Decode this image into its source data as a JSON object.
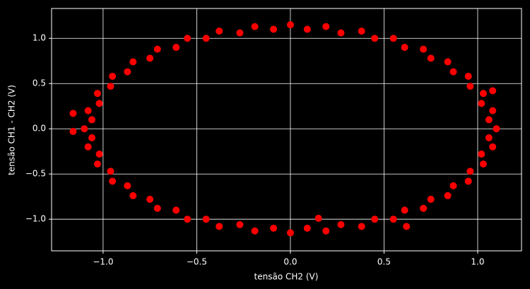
{
  "chart_data": {
    "type": "scatter",
    "xlabel": "tensão CH2 (V)",
    "ylabel": "tensão CH1 - CH2 (V)",
    "x": [
      1.1,
      1.08,
      1.03,
      0.95,
      0.84,
      0.71,
      0.55,
      0.38,
      0.19,
      0,
      -0.19,
      -0.38,
      -0.55,
      -0.71,
      -0.84,
      -0.95,
      -1.03,
      -1.08,
      -1.1,
      -1.08,
      -1.03,
      -0.95,
      -0.84,
      -0.71,
      -0.55,
      -0.38,
      -0.19,
      0,
      0.19,
      0.38,
      0.55,
      0.71,
      0.84,
      0.95,
      1.03,
      1.08,
      1.06,
      1.02,
      0.96,
      0.87,
      0.75,
      0.61,
      0.45,
      0.27,
      0.09,
      -0.09,
      -0.27,
      -0.45,
      -0.61,
      -0.75,
      -0.87,
      -0.96,
      -1.02,
      -1.06,
      -1.06,
      -1.02,
      -0.96,
      -0.87,
      -0.75,
      -0.61,
      -0.45,
      -0.27,
      -0.09,
      0.09,
      0.27,
      0.45,
      0.61,
      0.75,
      0.87,
      0.96,
      1.02,
      1.06,
      -1.16,
      -1.16,
      0.15,
      0.62,
      1.08
    ],
    "values": [
      0,
      0.2,
      0.39,
      0.58,
      0.74,
      0.88,
      1.0,
      1.08,
      1.13,
      1.15,
      1.13,
      1.08,
      1.0,
      0.88,
      0.74,
      0.58,
      0.39,
      0.2,
      0,
      -0.2,
      -0.39,
      -0.58,
      -0.74,
      -0.88,
      -1.0,
      -1.08,
      -1.13,
      -1.15,
      -1.13,
      -1.08,
      -1.0,
      -0.88,
      -0.74,
      -0.58,
      -0.39,
      -0.2,
      0.1,
      0.28,
      0.47,
      0.63,
      0.78,
      0.9,
      1.0,
      1.06,
      1.1,
      1.1,
      1.06,
      1.0,
      0.9,
      0.78,
      0.63,
      0.47,
      0.28,
      0.1,
      -0.1,
      -0.28,
      -0.47,
      -0.63,
      -0.78,
      -0.9,
      -1.0,
      -1.06,
      -1.1,
      -1.1,
      -1.06,
      -1.0,
      -0.9,
      -0.78,
      -0.63,
      -0.47,
      -0.28,
      -0.1,
      0.17,
      -0.03,
      -0.99,
      -1.08,
      0.42
    ],
    "color": "#ff0000",
    "xlim": [
      -1.275,
      1.234
    ],
    "ylim": [
      -1.35,
      1.33
    ],
    "xticks": [
      {
        "value": -1.0,
        "label": "−1.0"
      },
      {
        "value": -0.5,
        "label": "−0.5"
      },
      {
        "value": 0,
        "label": "0.0"
      },
      {
        "value": 0.5,
        "label": "0.5"
      },
      {
        "value": 1.0,
        "label": "1.0"
      }
    ],
    "yticks": [
      {
        "value": -1.0,
        "label": "−1.0"
      },
      {
        "value": -0.5,
        "label": "−0.5"
      },
      {
        "value": 0,
        "label": "0.0"
      },
      {
        "value": 0.5,
        "label": "0.5"
      },
      {
        "value": 1.0,
        "label": "1.0"
      }
    ],
    "grid": true
  }
}
